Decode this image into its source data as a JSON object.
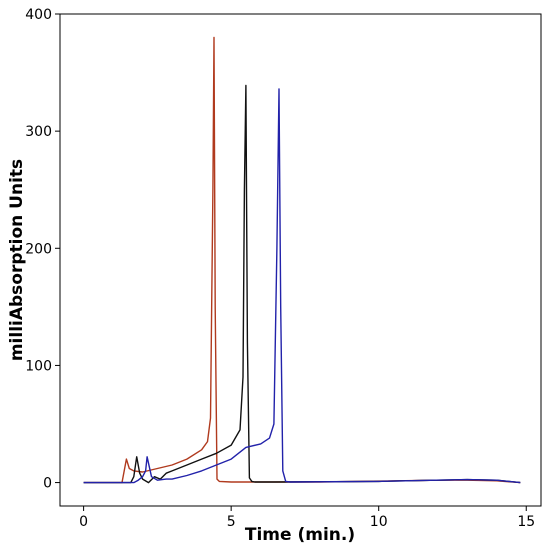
{
  "chart_data": {
    "type": "line",
    "title": "",
    "xlabel": "Time (min.)",
    "ylabel": "milliAbsorption Units",
    "xlim": [
      -0.8,
      15.5
    ],
    "ylim": [
      -20,
      400
    ],
    "xticks": [
      0,
      5,
      10,
      15
    ],
    "yticks": [
      0,
      100,
      200,
      300,
      400
    ],
    "xtick_labels": [
      "0",
      "5",
      "10",
      "15"
    ],
    "ytick_labels": [
      "0",
      "100",
      "200",
      "300",
      "400"
    ],
    "grid": false,
    "legend": "none",
    "series": [
      {
        "color": "#b03a1e",
        "x": [
          0,
          1.3,
          1.45,
          1.55,
          1.7,
          2.0,
          2.5,
          3.0,
          3.5,
          4.0,
          4.2,
          4.3,
          4.38,
          4.42,
          4.46,
          4.52,
          4.6,
          5.0,
          8.0,
          12.0,
          13.0,
          14.0,
          14.8
        ],
        "y": [
          0,
          0,
          20,
          12,
          10,
          9,
          12,
          15,
          20,
          28,
          35,
          55,
          250,
          380,
          150,
          3,
          1,
          0.5,
          0.5,
          2,
          2,
          1.5,
          0
        ]
      },
      {
        "color": "#111111",
        "x": [
          0,
          1.6,
          1.7,
          1.8,
          1.9,
          2.0,
          2.2,
          2.4,
          2.6,
          2.8,
          3.0,
          3.5,
          4.0,
          4.5,
          5.0,
          5.3,
          5.4,
          5.45,
          5.5,
          5.55,
          5.62,
          5.7,
          5.8,
          6.5,
          10.0,
          13.0,
          14.0,
          14.8
        ],
        "y": [
          0,
          0,
          5,
          22,
          8,
          3,
          0,
          5,
          3,
          8,
          10,
          15,
          20,
          25,
          32,
          45,
          90,
          250,
          339,
          120,
          4,
          1,
          0.5,
          0.5,
          1,
          2.5,
          2,
          0
        ]
      },
      {
        "color": "#2222aa",
        "x": [
          0,
          1.7,
          1.85,
          2.0,
          2.1,
          2.15,
          2.3,
          2.5,
          2.8,
          3.0,
          3.5,
          4.0,
          4.5,
          5.0,
          5.5,
          6.0,
          6.3,
          6.45,
          6.55,
          6.62,
          6.68,
          6.75,
          6.85,
          7.0,
          10.0,
          13.0,
          14.0,
          14.8
        ],
        "y": [
          0,
          0,
          2,
          5,
          10,
          22,
          5,
          2,
          3,
          3,
          6,
          10,
          15,
          20,
          30,
          33,
          38,
          50,
          200,
          336,
          150,
          10,
          1,
          0.5,
          1,
          2.5,
          2,
          0
        ]
      }
    ]
  }
}
